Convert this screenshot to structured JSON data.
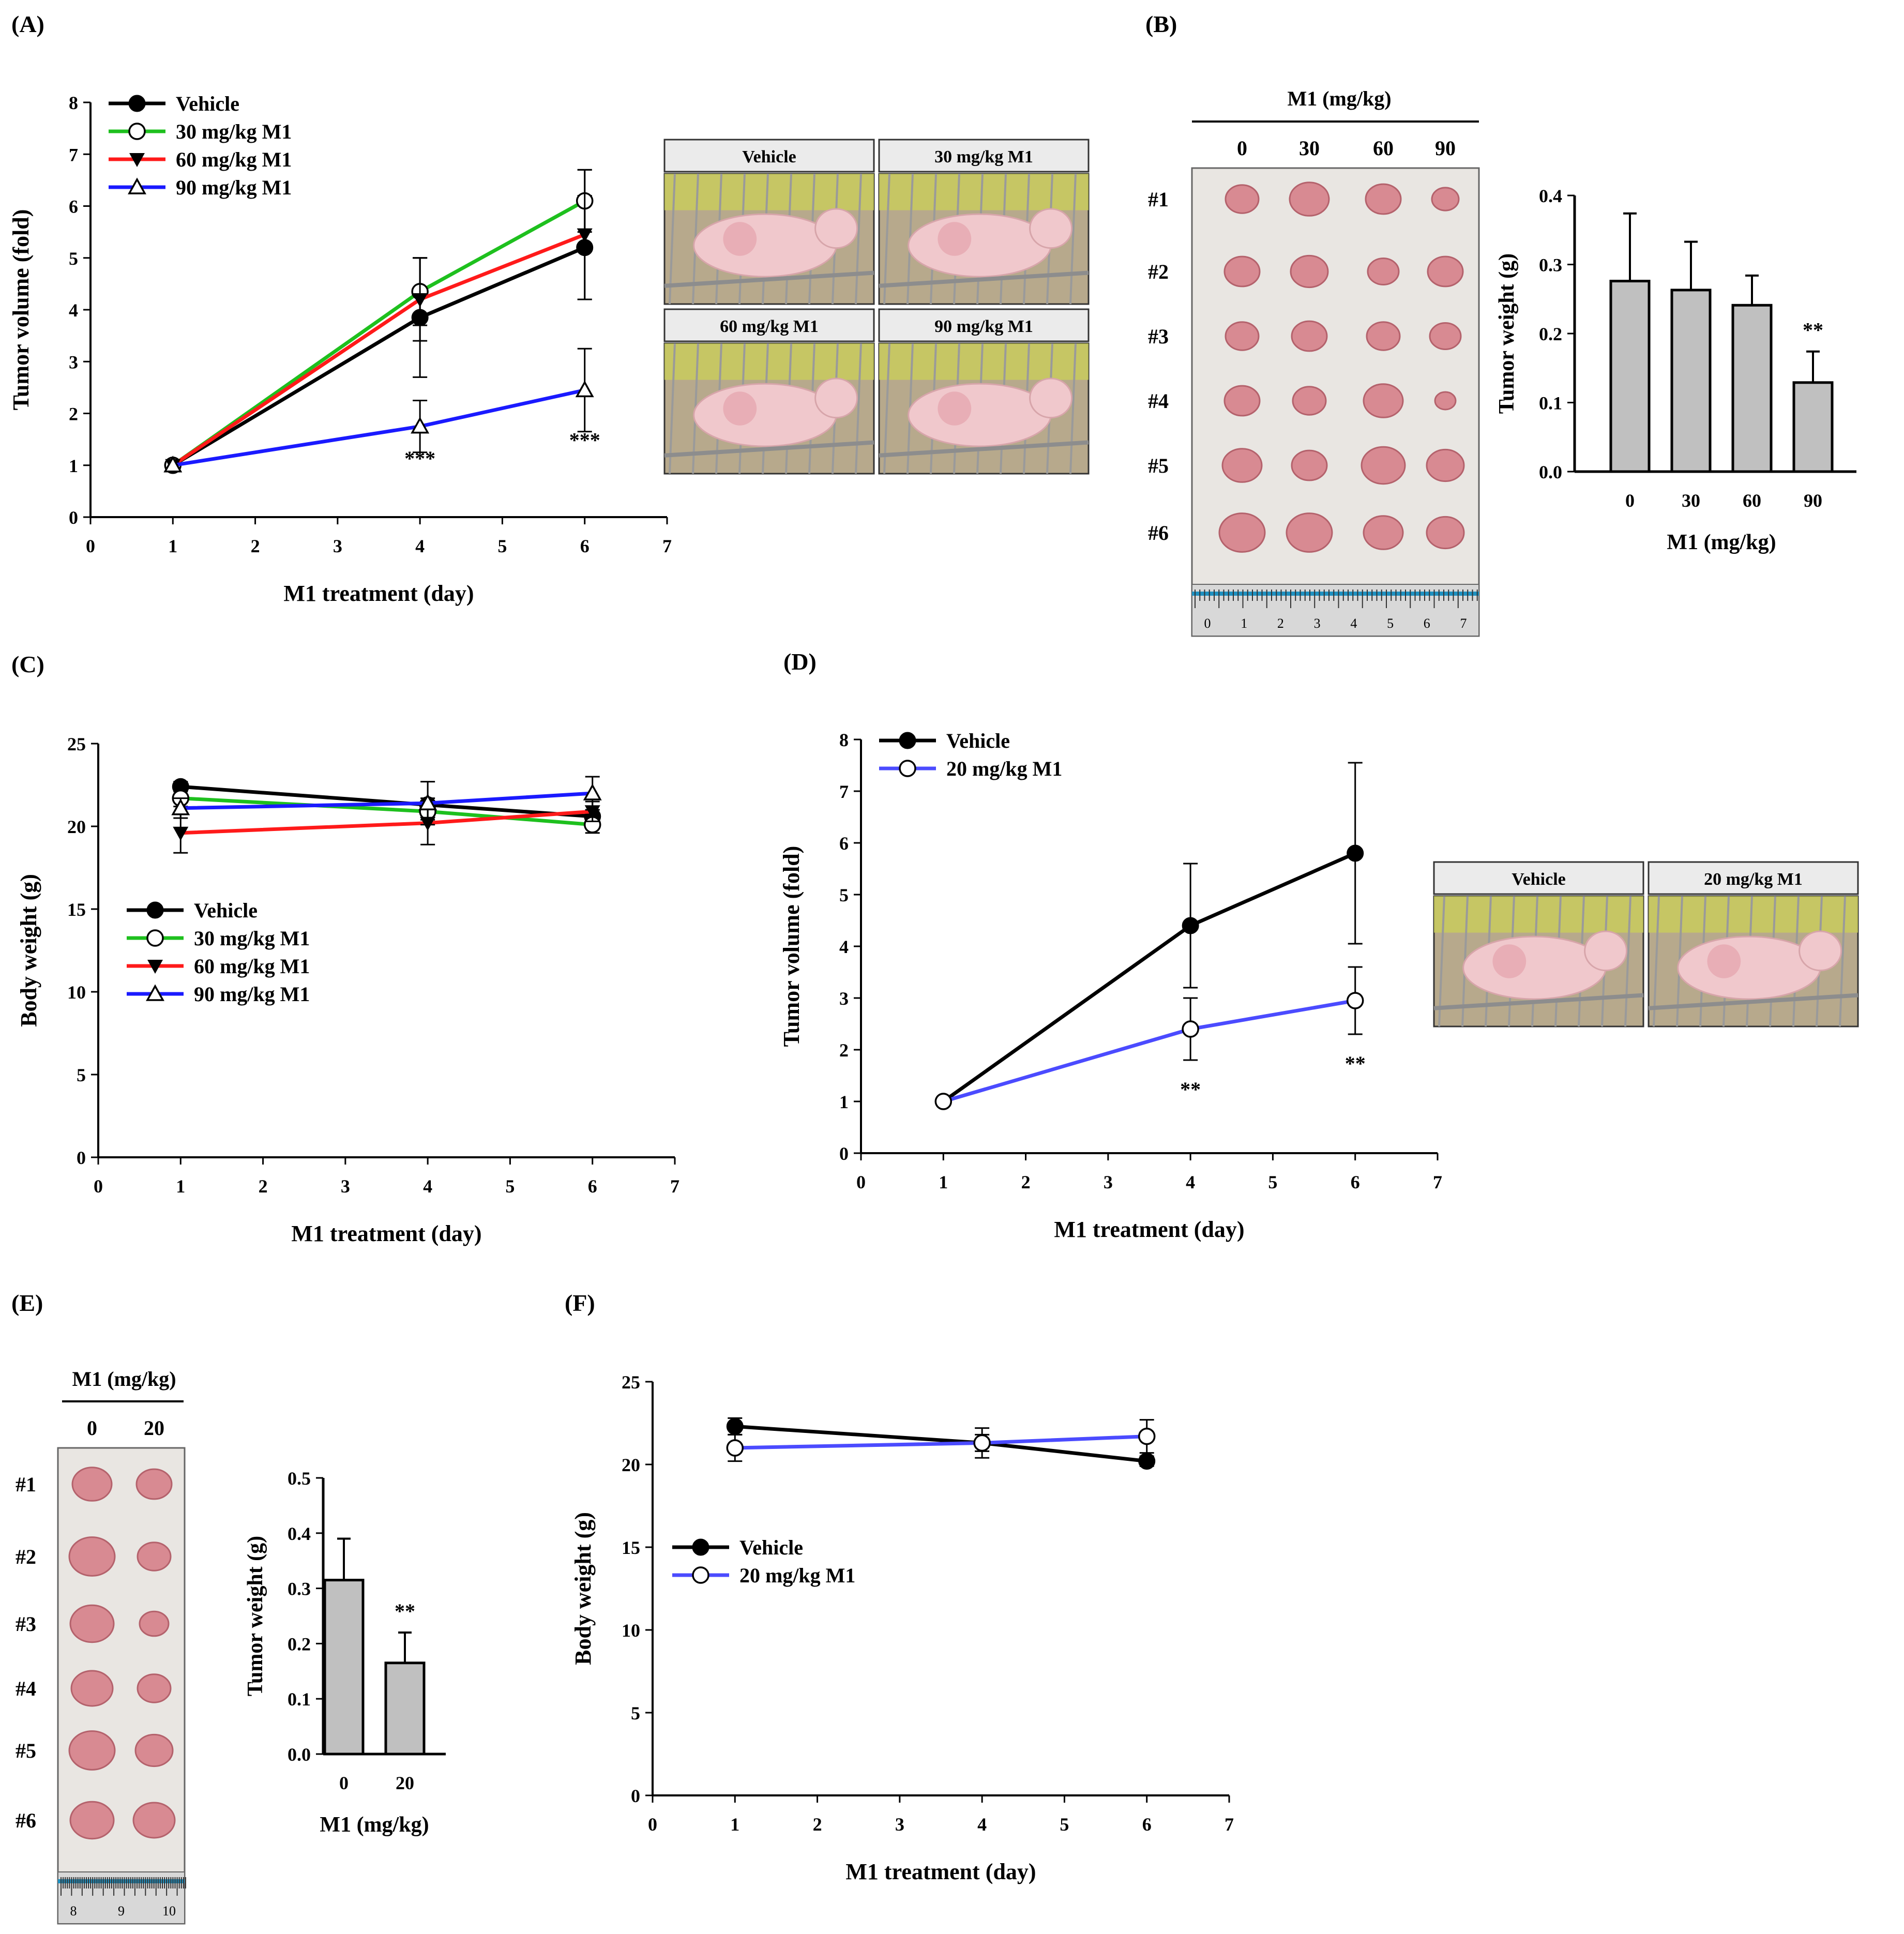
{
  "colors": {
    "vehicle": "#000000",
    "m30": "#1ec01e",
    "m60": "#ff1a1a",
    "m90": "#1a1aff",
    "m20": "#4b4bff",
    "bar": "#c0c0c0",
    "tumor": "#d88a92",
    "photo_bg": "#ebebeb",
    "mouse": "#f0c8cc"
  },
  "panels": {
    "A": "(A)",
    "B": "(B)",
    "C": "(C)",
    "D": "(D)",
    "E": "(E)",
    "F": "(F)"
  },
  "photos_A": {
    "labels": [
      "Vehicle",
      "30 mg/kg M1",
      "60 mg/kg M1",
      "90 mg/kg M1"
    ]
  },
  "photos_D": {
    "labels": [
      "Vehicle",
      "20 mg/kg M1"
    ]
  },
  "tumor_B": {
    "header": "M1 (mg/kg)",
    "cols": [
      "0",
      "30",
      "60",
      "90"
    ],
    "rows": [
      "#1",
      "#2",
      "#3",
      "#4",
      "#5",
      "#6"
    ],
    "ruler": [
      "0",
      "1",
      "2",
      "3",
      "4",
      "5",
      "6",
      "7"
    ]
  },
  "tumor_E": {
    "header": "M1 (mg/kg)",
    "cols": [
      "0",
      "20"
    ],
    "rows": [
      "#1",
      "#2",
      "#3",
      "#4",
      "#5",
      "#6"
    ],
    "ruler": [
      "8",
      "9",
      "10"
    ]
  },
  "chart_data": [
    {
      "id": "A",
      "type": "line",
      "xlabel": "M1 treatment (day)",
      "ylabel": "Tumor volume (fold)",
      "xlim": [
        0,
        7
      ],
      "ylim": [
        0,
        8
      ],
      "xticks": [
        "0",
        "1",
        "2",
        "3",
        "4",
        "5",
        "6",
        "7"
      ],
      "yticks": [
        "0",
        "1",
        "2",
        "3",
        "4",
        "5",
        "6",
        "7",
        "8"
      ],
      "x": [
        1,
        4,
        6
      ],
      "series": [
        {
          "name": "Vehicle",
          "marker": "filled-circle",
          "color": "#000000",
          "values": [
            1,
            3.85,
            5.2
          ],
          "err": [
            0,
            1.15,
            1.0
          ]
        },
        {
          "name": "30 mg/kg M1",
          "marker": "open-circle",
          "color": "#1ec01e",
          "values": [
            1,
            4.35,
            6.1
          ],
          "err": [
            0,
            0.65,
            0.6
          ]
        },
        {
          "name": "60 mg/kg M1",
          "marker": "filled-triangle-down",
          "color": "#ff1a1a",
          "values": [
            1,
            4.2,
            5.45
          ],
          "err": [
            0,
            0.8,
            1.25
          ]
        },
        {
          "name": "90 mg/kg M1",
          "marker": "open-triangle-up",
          "color": "#1a1aff",
          "values": [
            1,
            1.75,
            2.45
          ],
          "err": [
            0,
            0.5,
            0.8
          ]
        }
      ],
      "annotations": [
        {
          "x": 4,
          "y": 1.0,
          "text": "***"
        },
        {
          "x": 6,
          "y": 1.35,
          "text": "***"
        }
      ]
    },
    {
      "id": "B",
      "type": "bar",
      "xlabel": "M1 (mg/kg)",
      "ylabel": "Tumor weight (g)",
      "ylim": [
        0,
        0.4
      ],
      "categories": [
        "0",
        "30",
        "60",
        "90"
      ],
      "yticks": [
        "0.0",
        "0.1",
        "0.2",
        "0.3",
        "0.4"
      ],
      "values": [
        0.276,
        0.263,
        0.241,
        0.129
      ],
      "err": [
        0.098,
        0.07,
        0.043,
        0.045
      ],
      "annotations": [
        {
          "category": "90",
          "text": "**"
        }
      ]
    },
    {
      "id": "C",
      "type": "line",
      "xlabel": "M1 treatment (day)",
      "ylabel": "Body weight (g)",
      "xlim": [
        0,
        7
      ],
      "ylim": [
        0,
        25
      ],
      "xticks": [
        "0",
        "1",
        "2",
        "3",
        "4",
        "5",
        "6",
        "7"
      ],
      "yticks": [
        "0",
        "5",
        "10",
        "15",
        "20",
        "25"
      ],
      "x": [
        1,
        4,
        6
      ],
      "series": [
        {
          "name": "Vehicle",
          "marker": "filled-circle",
          "color": "#000000",
          "values": [
            22.4,
            21.3,
            20.6
          ],
          "err": [
            0.3,
            0.4,
            0.4
          ]
        },
        {
          "name": "30 mg/kg M1",
          "marker": "open-circle",
          "color": "#1ec01e",
          "values": [
            21.7,
            20.9,
            20.1
          ],
          "err": [
            0.5,
            0.5,
            0.5
          ]
        },
        {
          "name": "60 mg/kg M1",
          "marker": "filled-triangle-down",
          "color": "#ff1a1a",
          "values": [
            19.6,
            20.2,
            20.9
          ],
          "err": [
            1.2,
            1.3,
            0.6
          ]
        },
        {
          "name": "90 mg/kg M1",
          "marker": "open-triangle-up",
          "color": "#1a1aff",
          "values": [
            21.1,
            21.4,
            22.0
          ],
          "err": [
            0.6,
            1.3,
            1.0
          ]
        }
      ],
      "annotations": []
    },
    {
      "id": "D",
      "type": "line",
      "xlabel": "M1 treatment (day)",
      "ylabel": "Tumor volume (fold)",
      "xlim": [
        0,
        7
      ],
      "ylim": [
        0,
        8
      ],
      "xticks": [
        "0",
        "1",
        "2",
        "3",
        "4",
        "5",
        "6",
        "7"
      ],
      "yticks": [
        "0",
        "1",
        "2",
        "3",
        "4",
        "5",
        "6",
        "7",
        "8"
      ],
      "x": [
        1,
        4,
        6
      ],
      "series": [
        {
          "name": "Vehicle",
          "marker": "filled-circle",
          "color": "#000000",
          "values": [
            1,
            4.4,
            5.8
          ],
          "err": [
            0,
            1.2,
            1.75
          ]
        },
        {
          "name": "20 mg/kg M1",
          "marker": "open-circle",
          "color": "#4b4bff",
          "values": [
            1,
            2.4,
            2.95
          ],
          "err": [
            0,
            0.6,
            0.65
          ]
        }
      ],
      "annotations": [
        {
          "x": 4,
          "y": 1.1,
          "text": "**"
        },
        {
          "x": 6,
          "y": 1.6,
          "text": "**"
        }
      ]
    },
    {
      "id": "E",
      "type": "bar",
      "xlabel": "M1 (mg/kg)",
      "ylabel": "Tumor weight (g)",
      "ylim": [
        0,
        0.5
      ],
      "categories": [
        "0",
        "20"
      ],
      "yticks": [
        "0.0",
        "0.1",
        "0.2",
        "0.3",
        "0.4",
        "0.5"
      ],
      "values": [
        0.315,
        0.165
      ],
      "err": [
        0.075,
        0.055
      ],
      "annotations": [
        {
          "category": "20",
          "text": "**"
        }
      ]
    },
    {
      "id": "F",
      "type": "line",
      "xlabel": "M1 treatment (day)",
      "ylabel": "Body weight (g)",
      "xlim": [
        0,
        7
      ],
      "ylim": [
        0,
        25
      ],
      "xticks": [
        "0",
        "1",
        "2",
        "3",
        "4",
        "5",
        "6",
        "7"
      ],
      "yticks": [
        "0",
        "5",
        "10",
        "15",
        "20",
        "25"
      ],
      "x": [
        1,
        4,
        6
      ],
      "series": [
        {
          "name": "Vehicle",
          "marker": "filled-circle",
          "color": "#000000",
          "values": [
            22.3,
            21.3,
            20.2
          ],
          "err": [
            0.5,
            0.5,
            0.3
          ]
        },
        {
          "name": "20 mg/kg M1",
          "marker": "open-circle",
          "color": "#4b4bff",
          "values": [
            21.0,
            21.3,
            21.7
          ],
          "err": [
            0.8,
            0.9,
            1.0
          ]
        }
      ],
      "annotations": []
    }
  ]
}
